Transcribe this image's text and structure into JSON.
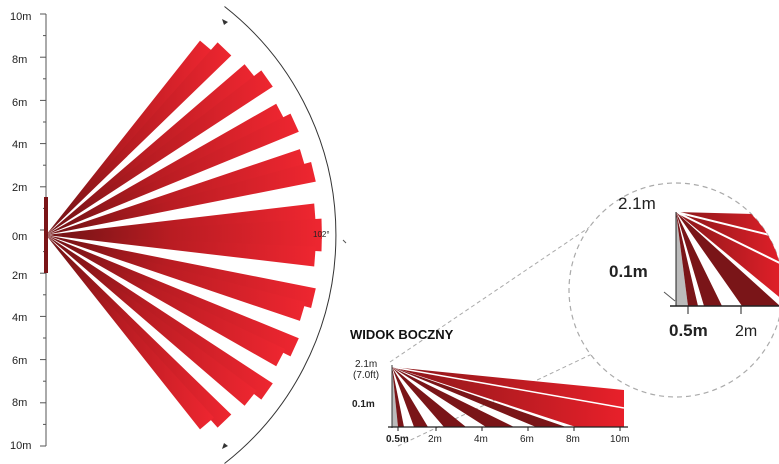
{
  "top_view": {
    "axis_labels": [
      "10m",
      "8m",
      "6m",
      "4m",
      "2m",
      "0m",
      "2m",
      "4m",
      "6m",
      "8m",
      "10m"
    ],
    "angle_label": "102°"
  },
  "side_view": {
    "title": "WIDOK BOCZNY",
    "height_label": "2.1m",
    "height_label_ft": "(7.0ft)",
    "min_height_label": "0.1m",
    "distance_labels": [
      "0.5m",
      "2m",
      "4m",
      "6m",
      "8m",
      "10m"
    ]
  },
  "zoom_view": {
    "height_label": "2.1m",
    "min_height_label": "0.1m",
    "distance_labels": [
      "0.5m",
      "2m"
    ]
  },
  "colors": {
    "beam_light": "#e8202a",
    "beam_dark": "#7a1518",
    "axis": "#555555",
    "dashed": "#aaaaaa"
  }
}
